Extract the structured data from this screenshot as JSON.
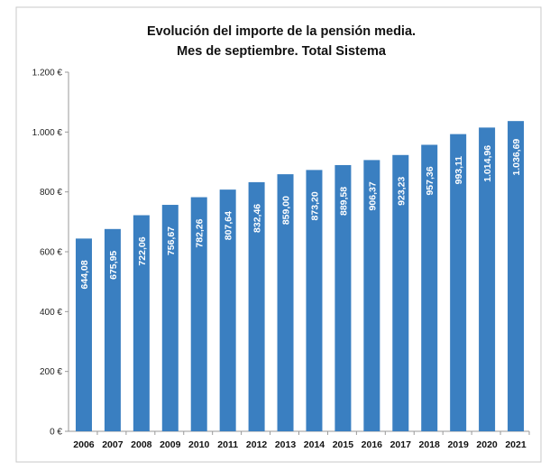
{
  "chart_data": {
    "type": "bar",
    "title": "Evolución del importe de la pensión media.",
    "subtitle": "Mes de septiembre. Total Sistema",
    "xlabel": "",
    "ylabel": "",
    "categories": [
      "2006",
      "2007",
      "2008",
      "2009",
      "2010",
      "2011",
      "2012",
      "2013",
      "2014",
      "2015",
      "2016",
      "2017",
      "2018",
      "2019",
      "2020",
      "2021"
    ],
    "values": [
      644.08,
      675.95,
      722.06,
      756.67,
      782.26,
      807.64,
      832.46,
      859.0,
      873.2,
      889.58,
      906.37,
      923.23,
      957.36,
      993.11,
      1014.96,
      1036.69
    ],
    "data_labels": [
      "644,08",
      "675,95",
      "722,06",
      "756,67",
      "782,26",
      "807,64",
      "832,46",
      "859,00",
      "873,20",
      "889,58",
      "906,37",
      "923,23",
      "957,36",
      "993,11",
      "1.014,96",
      "1.036,69"
    ],
    "ylim": [
      0,
      1200
    ],
    "yticks": [
      0,
      200,
      400,
      600,
      800,
      1000,
      1200
    ],
    "ytick_labels": [
      "0 €",
      "200 €",
      "400 €",
      "600 €",
      "800 €",
      "1.000 €",
      "1.200 €"
    ],
    "grid": false,
    "legend": "none",
    "bar_color": "#3a7fc1"
  }
}
